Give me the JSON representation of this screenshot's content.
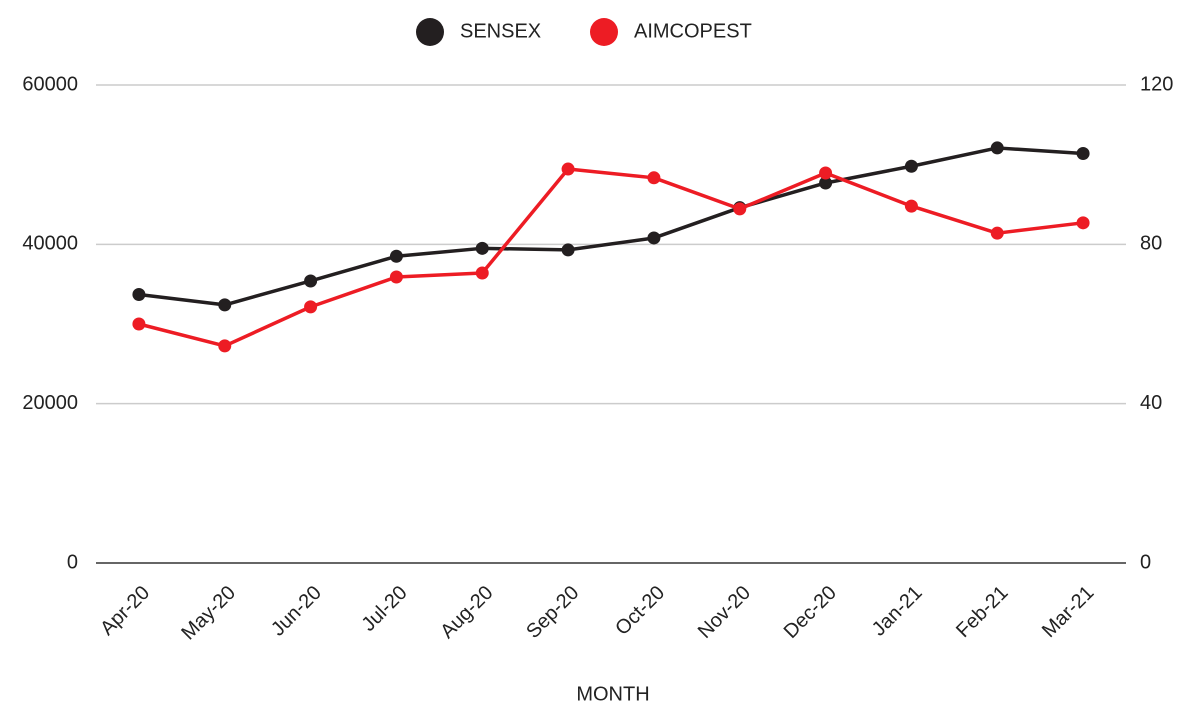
{
  "chart_data": {
    "type": "line",
    "x_label": "MONTH",
    "categories": [
      "Apr-20",
      "May-20",
      "Jun-20",
      "Jul-20",
      "Aug-20",
      "Sep-20",
      "Oct-20",
      "Nov-20",
      "Dec-20",
      "Jan-21",
      "Feb-21",
      "Mar-21"
    ],
    "series": [
      {
        "name": "SENSEX",
        "color": "#231f20",
        "values": [
          33700,
          32400,
          35400,
          38500,
          39500,
          39300,
          40800,
          44600,
          47700,
          49800,
          52100,
          51400
        ]
      },
      {
        "name": "AIMCOPEST",
        "color": "#ed1c24",
        "axis": "y2",
        "values": [
          60.0,
          54.5,
          64.3,
          71.8,
          72.8,
          98.9,
          96.7,
          88.9,
          97.9,
          89.6,
          82.8,
          85.4
        ]
      }
    ],
    "ylim": [
      0,
      60000
    ],
    "yticks": [
      0,
      20000,
      40000,
      60000
    ],
    "y2lim": [
      0,
      120
    ],
    "y2ticks": [
      0,
      40,
      80,
      120
    ],
    "grid": true,
    "legend": "top"
  }
}
